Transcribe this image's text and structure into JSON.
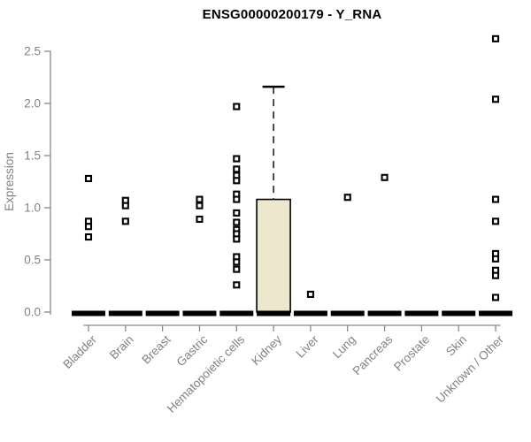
{
  "header": {
    "title": "ENSG00000200179 - Y_RNA"
  },
  "chart_data": {
    "type": "boxplot",
    "title": "ENSG00000200179 - Y_RNA",
    "xlabel": "",
    "ylabel": "Expression",
    "ylim": [
      0.0,
      2.5
    ],
    "yticks": [
      0.0,
      0.5,
      1.0,
      1.5,
      2.0,
      2.5
    ],
    "grid": false,
    "legend_position": "none",
    "marker_style": "open-square",
    "categories": [
      "Bladder",
      "Brain",
      "Breast",
      "Gastric",
      "Hematopoietic cells",
      "Kidney",
      "Liver",
      "Lung",
      "Pancreas",
      "Prostate",
      "Skin",
      "Unknown / Other"
    ],
    "series": [
      {
        "category": "Bladder",
        "box": {
          "q1": 0,
          "median": 0,
          "q3": 0,
          "whisker_low": 0,
          "whisker_high": 0
        },
        "points": [
          1.28,
          0.87,
          0.82,
          0.72
        ]
      },
      {
        "category": "Brain",
        "box": {
          "q1": 0,
          "median": 0,
          "q3": 0,
          "whisker_low": 0,
          "whisker_high": 0
        },
        "points": [
          1.07,
          1.02,
          0.87
        ]
      },
      {
        "category": "Breast",
        "box": {
          "q1": 0,
          "median": 0,
          "q3": 0,
          "whisker_low": 0,
          "whisker_high": 0
        },
        "points": []
      },
      {
        "category": "Gastric",
        "box": {
          "q1": 0,
          "median": 0,
          "q3": 0,
          "whisker_low": 0,
          "whisker_high": 0
        },
        "points": [
          1.08,
          1.02,
          0.89
        ]
      },
      {
        "category": "Hematopoietic cells",
        "box": {
          "q1": 0,
          "median": 0,
          "q3": 0,
          "whisker_low": 0,
          "whisker_high": 0
        },
        "points": [
          1.97,
          1.47,
          1.37,
          1.31,
          1.26,
          1.13,
          1.08,
          0.95,
          0.86,
          0.79,
          0.75,
          0.7,
          0.53,
          0.48,
          0.41,
          0.26
        ]
      },
      {
        "category": "Kidney",
        "box": {
          "q1": 0,
          "median": 0,
          "q3": 1.08,
          "whisker_low": 0,
          "whisker_high": 2.16
        },
        "points": []
      },
      {
        "category": "Liver",
        "box": {
          "q1": 0,
          "median": 0,
          "q3": 0,
          "whisker_low": 0,
          "whisker_high": 0
        },
        "points": [
          0.17
        ]
      },
      {
        "category": "Lung",
        "box": {
          "q1": 0,
          "median": 0,
          "q3": 0,
          "whisker_low": 0,
          "whisker_high": 0
        },
        "points": [
          1.1
        ]
      },
      {
        "category": "Pancreas",
        "box": {
          "q1": 0,
          "median": 0,
          "q3": 0,
          "whisker_low": 0,
          "whisker_high": 0
        },
        "points": [
          1.29
        ]
      },
      {
        "category": "Prostate",
        "box": {
          "q1": 0,
          "median": 0,
          "q3": 0,
          "whisker_low": 0,
          "whisker_high": 0
        },
        "points": []
      },
      {
        "category": "Skin",
        "box": {
          "q1": 0,
          "median": 0,
          "q3": 0,
          "whisker_low": 0,
          "whisker_high": 0
        },
        "points": []
      },
      {
        "category": "Unknown / Other",
        "box": {
          "q1": 0,
          "median": 0,
          "q3": 0,
          "whisker_low": 0,
          "whisker_high": 0
        },
        "points": [
          2.62,
          2.04,
          1.08,
          0.87,
          0.56,
          0.51,
          0.4,
          0.35,
          0.14
        ]
      }
    ],
    "colors": {
      "box_fill": "#ece7cd",
      "box_border": "#000000",
      "median": "#000000",
      "whisker": "#000000",
      "marker_stroke": "#000000",
      "marker_fill": "#ffffff",
      "axis": "#8a8a8a",
      "tick_text": "#828282",
      "title_text": "#000000"
    }
  }
}
